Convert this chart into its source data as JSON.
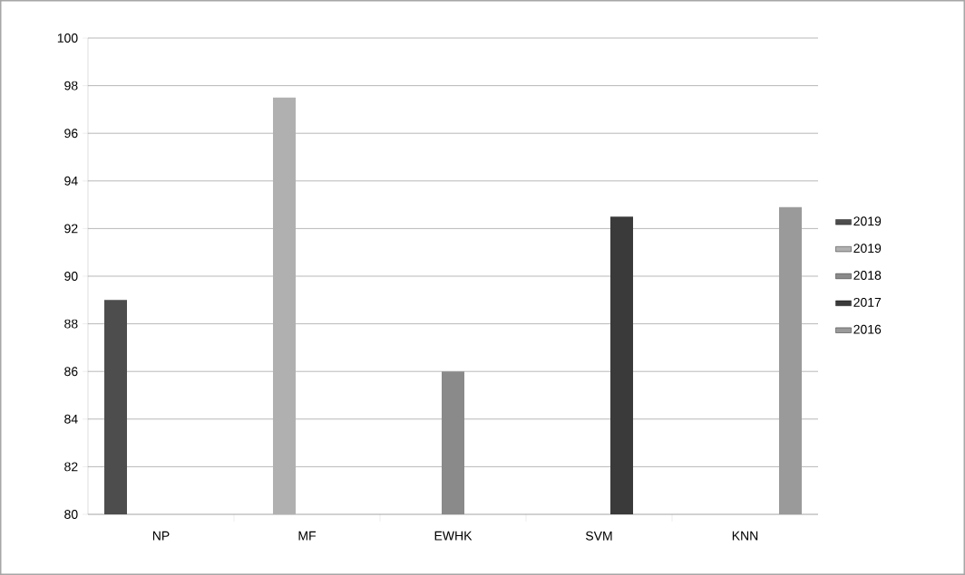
{
  "chart_data": {
    "type": "bar",
    "categories": [
      "NP",
      "MF",
      "EWHK",
      "SVM",
      "KNN"
    ],
    "series": [
      {
        "name": "2019",
        "color": "#4d4d4d",
        "values": [
          89,
          null,
          null,
          null,
          null
        ]
      },
      {
        "name": "2019",
        "color": "#b0b0b0",
        "values": [
          null,
          97.5,
          null,
          null,
          null
        ]
      },
      {
        "name": "2018",
        "color": "#8a8a8a",
        "values": [
          null,
          null,
          86,
          null,
          null
        ]
      },
      {
        "name": "2017",
        "color": "#3a3a3a",
        "values": [
          null,
          null,
          null,
          92.5,
          null
        ]
      },
      {
        "name": "2016",
        "color": "#9a9a9a",
        "values": [
          null,
          null,
          null,
          null,
          92.9
        ]
      }
    ],
    "ylim": [
      80,
      100
    ],
    "yticks": [
      80,
      82,
      84,
      86,
      88,
      90,
      92,
      94,
      96,
      98,
      100
    ],
    "grid": "y",
    "legend": "right"
  }
}
